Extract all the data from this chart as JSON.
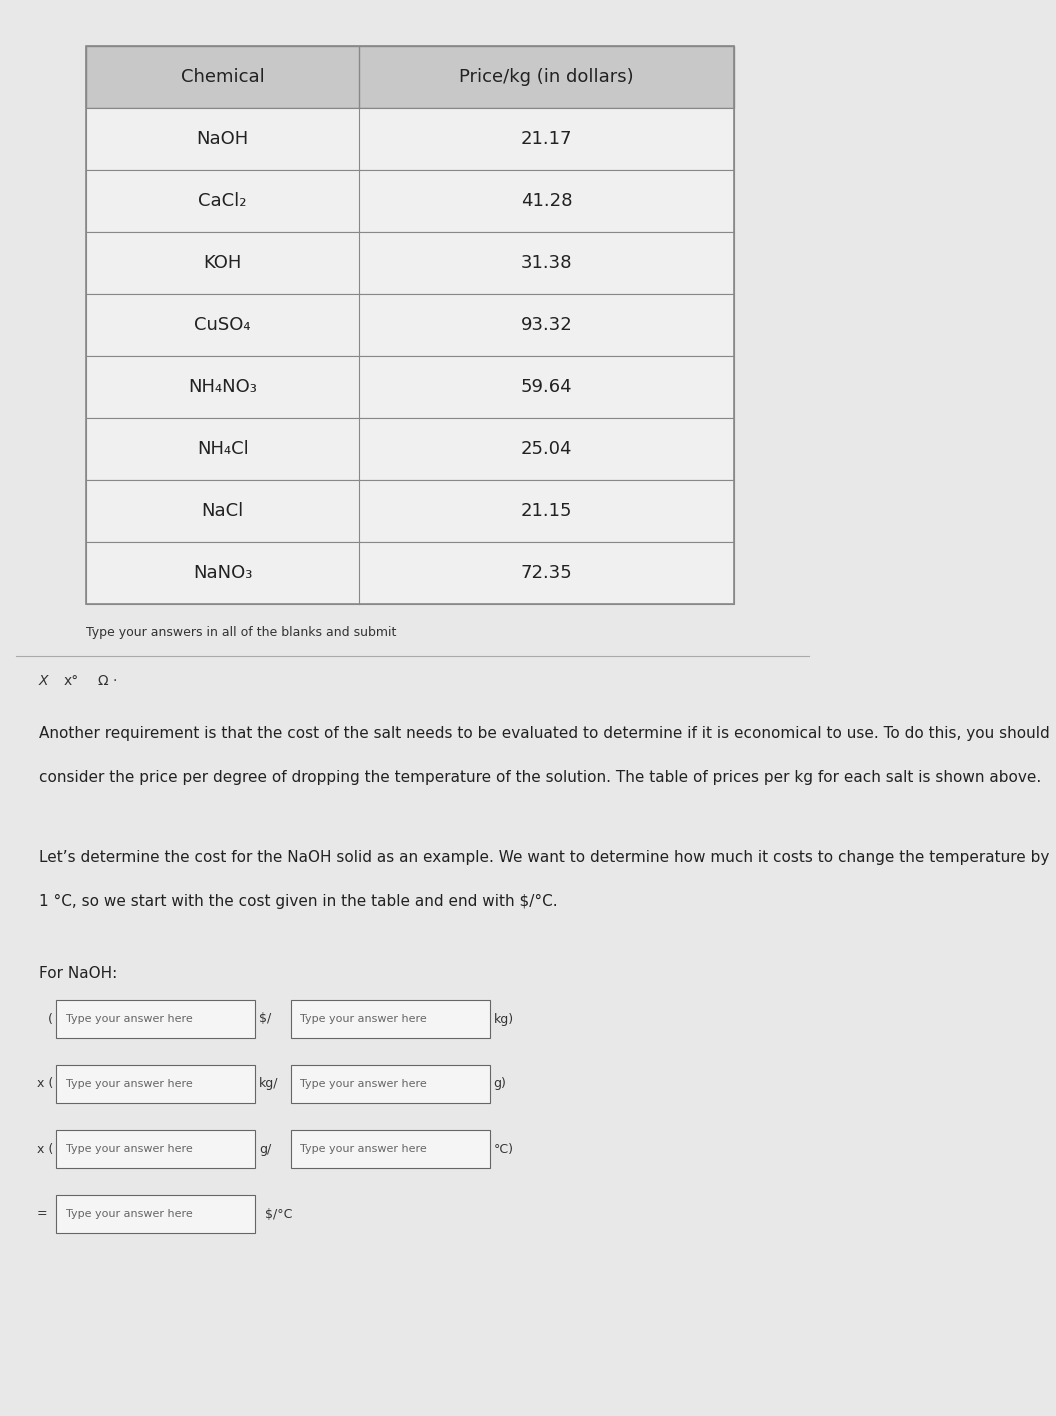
{
  "bg_color": "#d0d0d0",
  "page_bg": "#e8e8e8",
  "table_header_bg": "#c8c8c8",
  "table_row_bg": "#f0f0f0",
  "table_border_color": "#888888",
  "table_title_left": "Chemical",
  "table_title_right": "Price/kg (in dollars)",
  "table_data": [
    [
      "NaOH",
      "21.17"
    ],
    [
      "CaCl₂",
      "41.28"
    ],
    [
      "KOH",
      "31.38"
    ],
    [
      "CuSO₄",
      "93.32"
    ],
    [
      "NH₄NO₃",
      "59.64"
    ],
    [
      "NH₄Cl",
      "25.04"
    ],
    [
      "NaCl",
      "21.15"
    ],
    [
      "NaNO₃",
      "72.35"
    ]
  ],
  "small_text": "Type your answers in all of the blanks and submit",
  "paragraph1": "Another requirement is that the cost of the salt needs to be evaluated to determine if it is economical to use. To do this, you should",
  "paragraph2": "consider the price per degree of dropping the temperature of the solution. The table of prices per kg for each salt is shown above.",
  "paragraph3": "Let’s determine the cost for the NaOH solid as an example. We want to determine how much it costs to change the temperature by",
  "paragraph4": "1 °C, so we start with the cost given in the table and end with $/°C.",
  "for_naoh": "For NaOH:",
  "row3_right_suffix": "°C)",
  "row4_suffix": "$/°C",
  "placeholder": "Type your answer here",
  "font_size_table": 13,
  "font_size_body": 11,
  "font_size_small": 9
}
